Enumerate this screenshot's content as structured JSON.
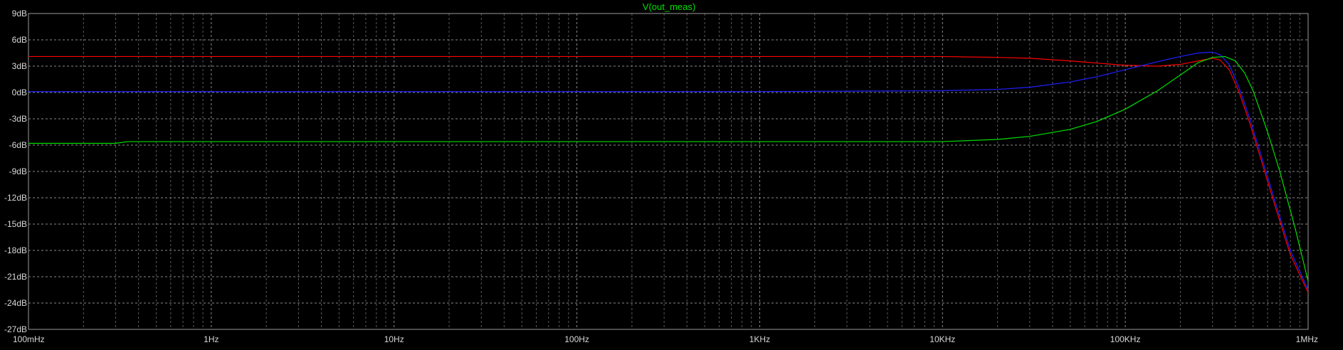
{
  "chart_data": {
    "type": "line",
    "title": "V(out_meas)",
    "xlabel": "",
    "ylabel": "",
    "x_scale": "log",
    "xlim": [
      0.1,
      1000000
    ],
    "ylim": [
      -27,
      9
    ],
    "grid": true,
    "colors": {
      "background": "#000000",
      "axis": "#9a9a9a",
      "grid_major": "#8a8a8a",
      "grid_minor": "#5a5a5a",
      "tick_text": "#d8d8d8",
      "title": "#00e000"
    },
    "y_ticks": [
      {
        "value": 9,
        "label": "9dB"
      },
      {
        "value": 6,
        "label": "6dB"
      },
      {
        "value": 3,
        "label": "3dB"
      },
      {
        "value": 0,
        "label": "0dB"
      },
      {
        "value": -3,
        "label": "-3dB"
      },
      {
        "value": -6,
        "label": "-6dB"
      },
      {
        "value": -9,
        "label": "-9dB"
      },
      {
        "value": -12,
        "label": "-12dB"
      },
      {
        "value": -15,
        "label": "-15dB"
      },
      {
        "value": -18,
        "label": "-18dB"
      },
      {
        "value": -21,
        "label": "-21dB"
      },
      {
        "value": -24,
        "label": "-24dB"
      },
      {
        "value": -27,
        "label": "-27dB"
      }
    ],
    "x_ticks": [
      {
        "value": 0.1,
        "label": "100mHz"
      },
      {
        "value": 1,
        "label": "1Hz"
      },
      {
        "value": 10,
        "label": "10Hz"
      },
      {
        "value": 100,
        "label": "100Hz"
      },
      {
        "value": 1000,
        "label": "1KHz"
      },
      {
        "value": 10000,
        "label": "10KHz"
      },
      {
        "value": 100000,
        "label": "100KHz"
      },
      {
        "value": 1000000,
        "label": "1MHz"
      }
    ],
    "series": [
      {
        "color": "#ff0000",
        "x": [
          0.1,
          1,
          10,
          100,
          1000,
          10000,
          20000,
          30000,
          50000,
          70000,
          100000,
          150000,
          200000,
          250000,
          300000,
          330000,
          370000,
          420000,
          480000,
          550000,
          650000,
          800000,
          1000000
        ],
        "values": [
          4.1,
          4.1,
          4.1,
          4.1,
          4.1,
          4.1,
          4.0,
          3.9,
          3.6,
          3.35,
          3.1,
          3.0,
          3.2,
          3.6,
          3.9,
          3.7,
          2.6,
          0.0,
          -3.5,
          -7.5,
          -12.5,
          -18.5,
          -22.8
        ]
      },
      {
        "color": "#2020ff",
        "x": [
          0.1,
          1,
          10,
          100,
          1000,
          10000,
          20000,
          30000,
          50000,
          70000,
          100000,
          150000,
          200000,
          250000,
          300000,
          330000,
          370000,
          420000,
          480000,
          550000,
          650000,
          800000,
          1000000
        ],
        "values": [
          0.1,
          0.1,
          0.1,
          0.1,
          0.1,
          0.2,
          0.35,
          0.6,
          1.2,
          1.8,
          2.6,
          3.5,
          4.1,
          4.5,
          4.6,
          4.3,
          3.2,
          0.5,
          -3.0,
          -7.0,
          -12.0,
          -18.0,
          -22.5
        ]
      },
      {
        "color": "#00e000",
        "x": [
          0.1,
          0.3,
          0.35,
          1,
          10,
          100,
          1000,
          10000,
          20000,
          30000,
          50000,
          70000,
          100000,
          150000,
          200000,
          250000,
          300000,
          350000,
          400000,
          450000,
          500000,
          600000,
          700000,
          850000,
          1000000
        ],
        "values": [
          -5.8,
          -5.8,
          -5.6,
          -5.6,
          -5.6,
          -5.6,
          -5.6,
          -5.6,
          -5.35,
          -5.0,
          -4.2,
          -3.3,
          -1.9,
          0.2,
          2.0,
          3.4,
          4.0,
          4.1,
          3.6,
          2.2,
          0.2,
          -4.5,
          -9.0,
          -15.5,
          -21.5
        ]
      }
    ]
  }
}
